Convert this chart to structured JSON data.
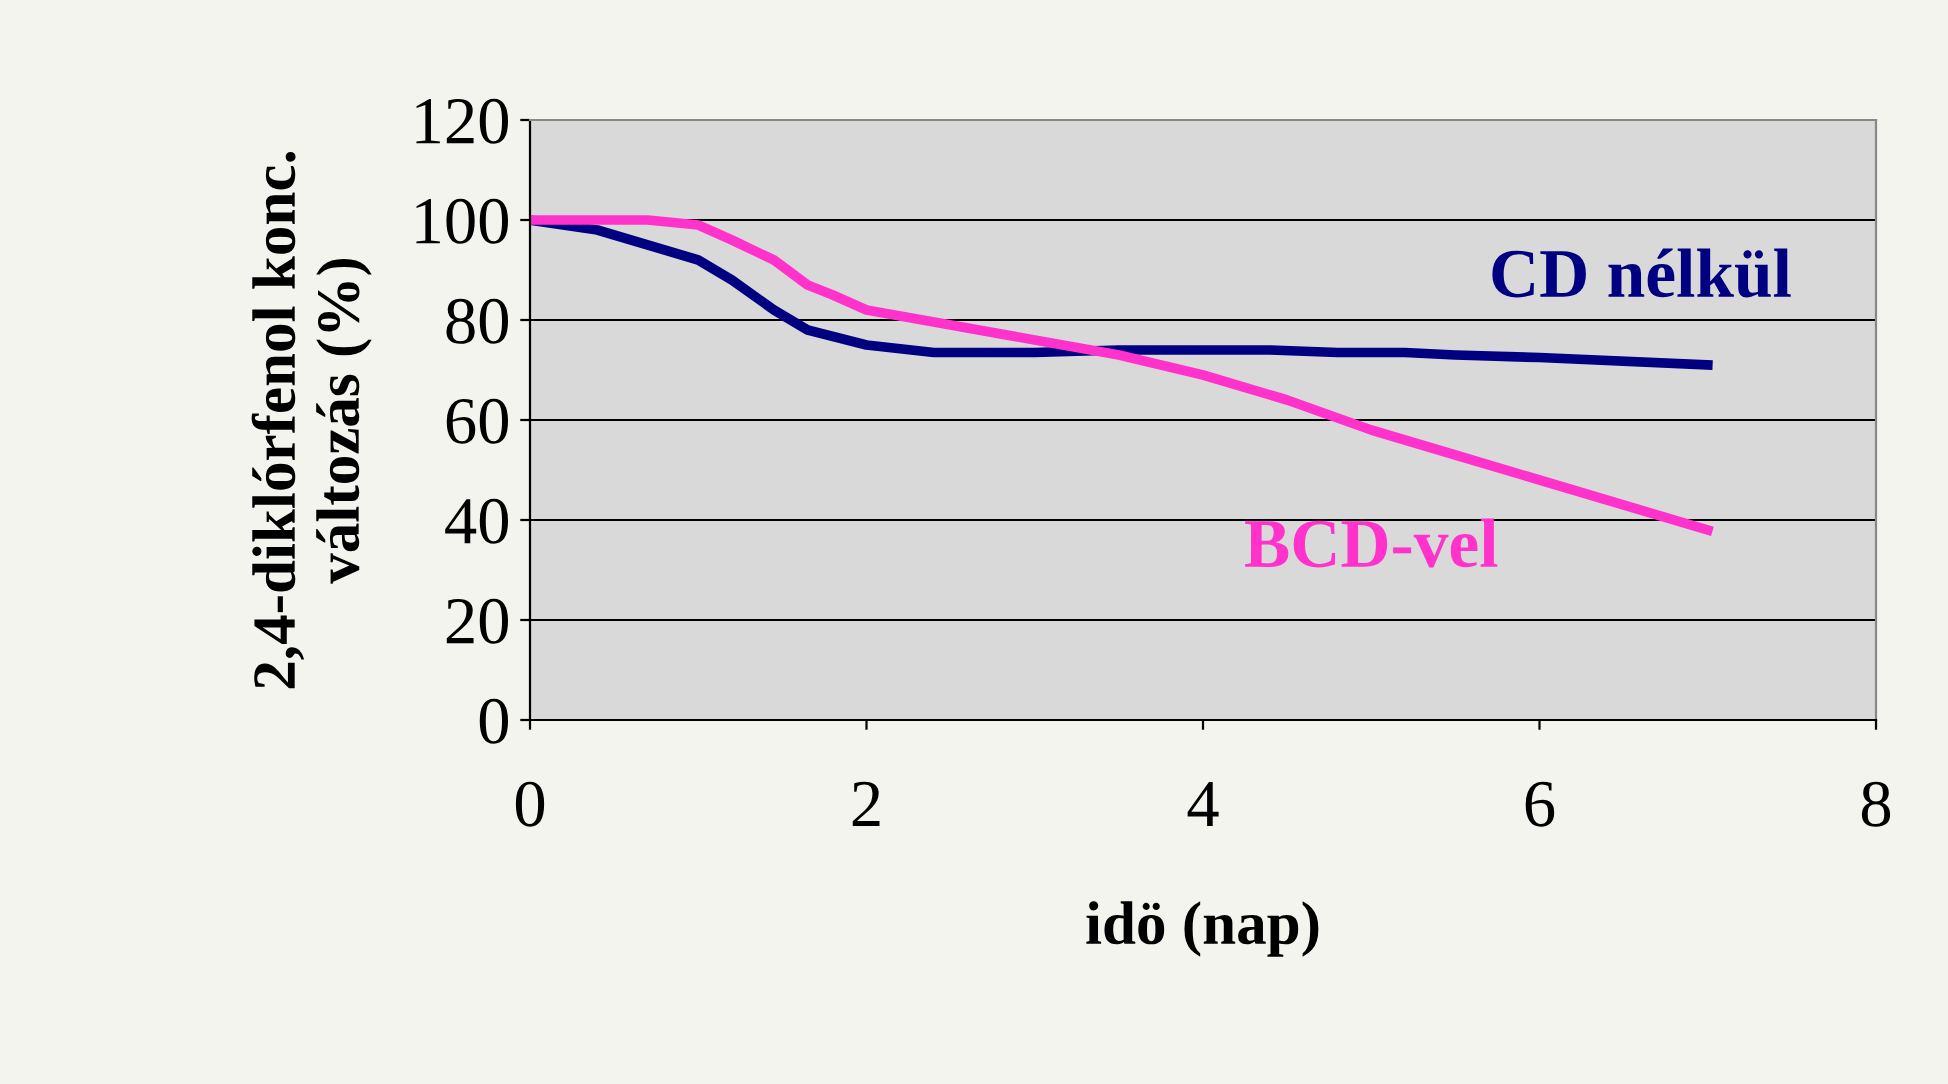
{
  "chart_data": {
    "type": "line",
    "xlabel": "idö (nap)",
    "ylabel": "2,4-diklórfenol konc.\nváltozás (%)",
    "xlim": [
      0,
      8
    ],
    "xticks": [
      0,
      2,
      4,
      6,
      8
    ],
    "ylim": [
      0,
      120
    ],
    "yticks": [
      0,
      20,
      40,
      60,
      80,
      100,
      120
    ],
    "grid": "y",
    "legend": false,
    "marker": "none",
    "line_style": "solid",
    "series": [
      {
        "name": "CD nélkül",
        "color": "#000080",
        "x": [
          0,
          0.4,
          1,
          1.2,
          1.45,
          1.65,
          2,
          2.4,
          3,
          3.5,
          4,
          4.4,
          4.8,
          5.2,
          5.5,
          6,
          7
        ],
        "values": [
          100,
          98,
          92,
          88,
          82,
          78,
          75,
          73.5,
          73.5,
          74,
          74,
          74,
          73.5,
          73.5,
          73,
          72.5,
          71
        ]
      },
      {
        "name": "BCD-vel",
        "color": "#ff33cc",
        "x": [
          0,
          0.7,
          1,
          1.2,
          1.45,
          1.65,
          1.8,
          2,
          3,
          3.5,
          4,
          4.5,
          5,
          5.5,
          6,
          7
        ],
        "values": [
          100,
          100,
          99,
          96,
          92,
          87,
          85,
          82,
          76,
          73,
          69,
          64,
          58,
          53,
          48,
          38
        ]
      }
    ]
  }
}
